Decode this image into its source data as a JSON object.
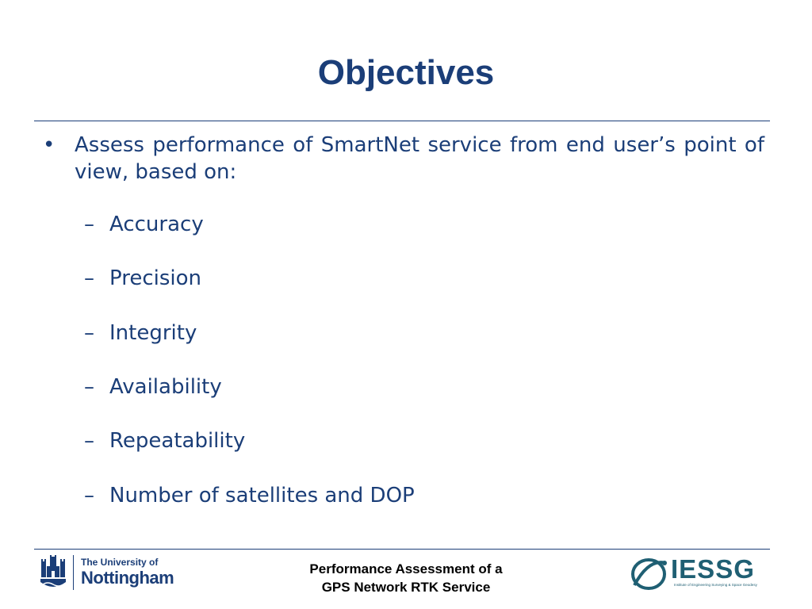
{
  "slide": {
    "title": "Objectives",
    "bullet": {
      "symbol": "•",
      "text": "Assess performance of SmartNet service from end user’s point of view, based on:"
    },
    "sub_dash": "–",
    "sub_items": [
      "Accuracy",
      "Precision",
      "Integrity",
      "Availability",
      "Repeatability",
      "Number of satellites and DOP"
    ]
  },
  "footer": {
    "line1": "Performance Assessment of a",
    "line2": "GPS Network RTK Service",
    "left_logo": {
      "icon": "crest-icon",
      "line1": "The University of",
      "line2": "Nottingham"
    },
    "right_logo": {
      "icon": "globe-swoosh-icon",
      "word": "IESSG",
      "tagline": "Institute of Engineering Surveying & Space Geodesy"
    }
  },
  "colors": {
    "primary": "#1b3e78",
    "iessg": "#1f5f73",
    "footer_text": "#000000",
    "background": "#ffffff"
  }
}
